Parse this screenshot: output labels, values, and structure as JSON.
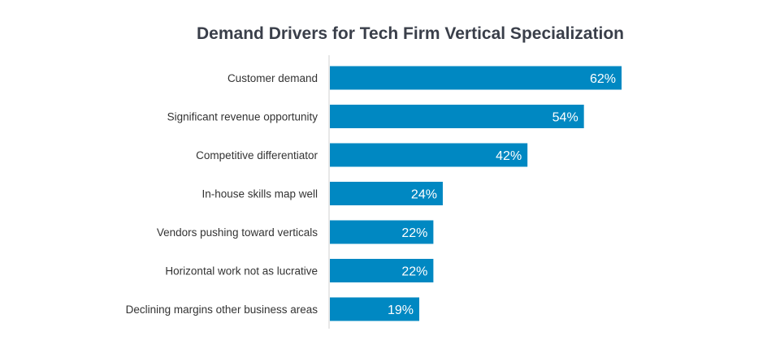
{
  "chart_data": {
    "type": "bar",
    "orientation": "horizontal",
    "title": "Demand Drivers for Tech Firm Vertical Specialization",
    "xlabel": "",
    "ylabel": "",
    "categories": [
      "Customer demand",
      "Significant revenue opportunity",
      "Competitive differentiator",
      "In-house skills map well",
      "Vendors pushing toward verticals",
      "Horizontal work not as lucrative",
      "Declining margins other business areas"
    ],
    "values": [
      62,
      54,
      42,
      24,
      22,
      22,
      19
    ],
    "value_labels": [
      "62%",
      "54%",
      "42%",
      "24%",
      "22%",
      "22%",
      "19%"
    ],
    "unit": "%",
    "xlim": [
      0,
      62
    ],
    "grid": false,
    "legend": "none",
    "colors": {
      "bar": "#0088c2",
      "bar_label": "#ffffff",
      "axis_line": "#d0d0d0",
      "category_label": "#333333",
      "title": "#3a3f4a"
    }
  }
}
